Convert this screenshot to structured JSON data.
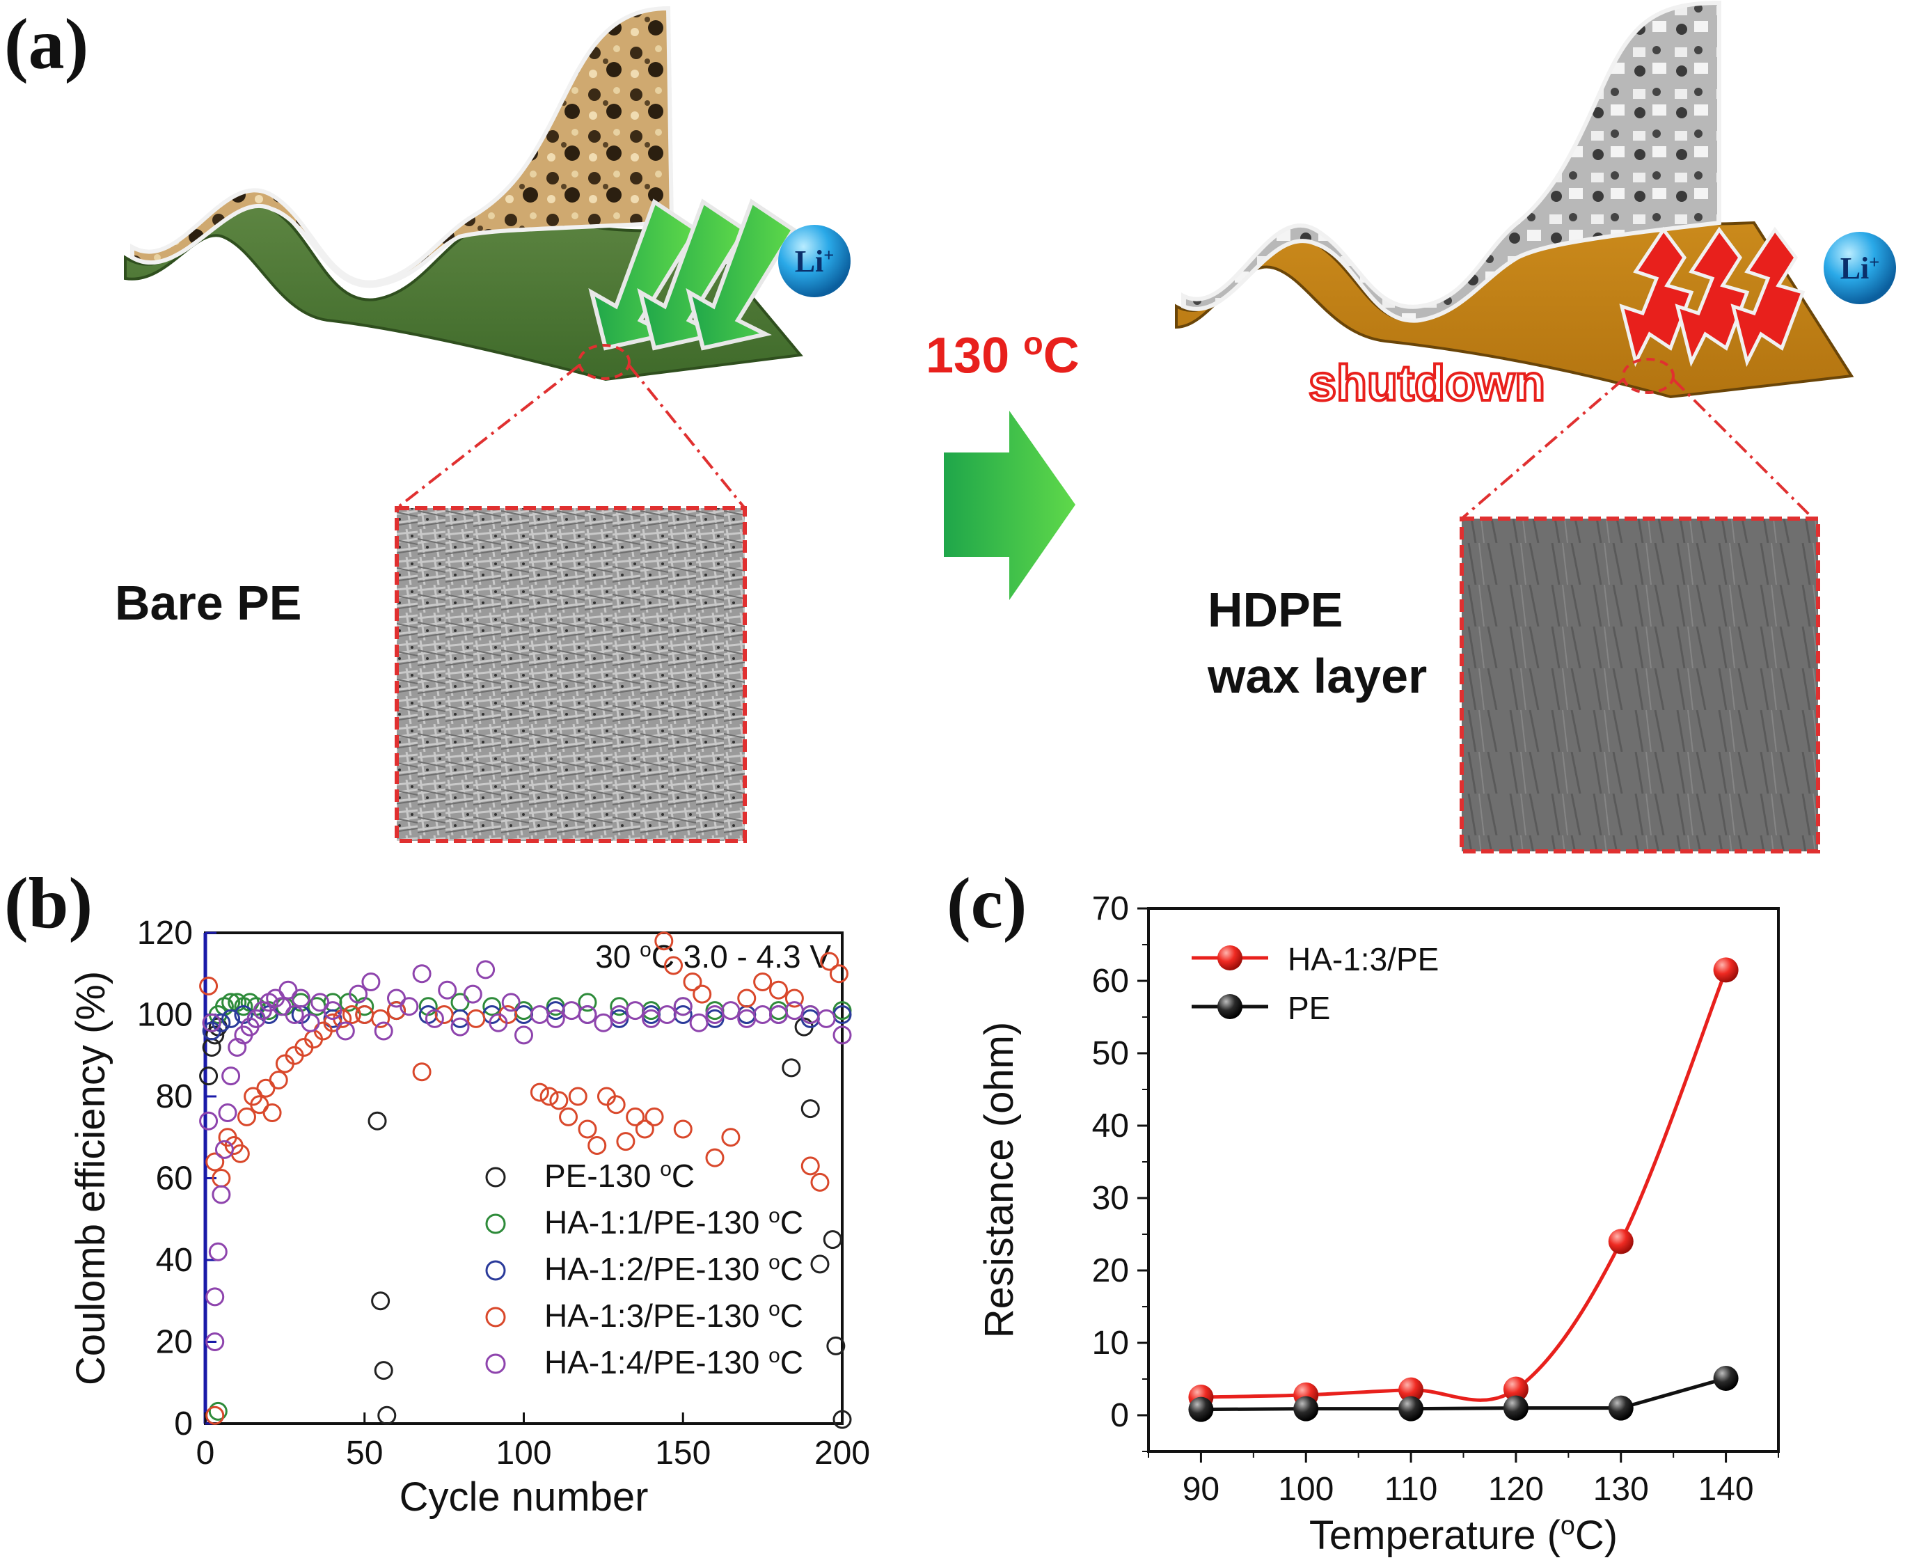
{
  "figure": {
    "panel_a": {
      "label": "(a)",
      "left_caption": "Bare PE",
      "right_caption_line1": "HDPE",
      "right_caption_line2": "wax layer",
      "condition": "130 oC",
      "shutdown_text": "shutdown",
      "ion_label": "Li+"
    },
    "panel_b": {
      "label": "(b)"
    },
    "panel_c": {
      "label": "(c)"
    }
  },
  "chart_data": [
    {
      "id": "b",
      "type": "scatter",
      "title": "",
      "annotation": "30 oC 3.0 - 4.3 V",
      "xlabel": "Cycle number",
      "ylabel": "Coulomb efficiency (%)",
      "xlim": [
        0,
        200
      ],
      "ylim": [
        0,
        120
      ],
      "xticks": [
        0,
        50,
        100,
        150,
        200
      ],
      "yticks": [
        0,
        20,
        40,
        60,
        80,
        100,
        120
      ],
      "legend_position": "center-right",
      "series": [
        {
          "name": "PE-130 oC",
          "color": "#222222",
          "x": [
            1,
            2,
            3,
            4,
            54,
            55,
            56,
            57,
            184,
            188,
            190,
            193,
            197,
            198,
            200
          ],
          "y": [
            85,
            92,
            95,
            97,
            74,
            30,
            13,
            2,
            87,
            97,
            77,
            39,
            45,
            19,
            1
          ]
        },
        {
          "name": "HA-1:1/PE-130 oC",
          "color": "#2e8b3a",
          "x": [
            2,
            4,
            6,
            8,
            10,
            12,
            14,
            16,
            18,
            20,
            25,
            30,
            35,
            40,
            45,
            50,
            60,
            70,
            80,
            90,
            100,
            110,
            120,
            130,
            140,
            150,
            160,
            170,
            180,
            190,
            200,
            4
          ],
          "y": [
            98,
            100,
            102,
            103,
            103,
            102,
            103,
            102,
            101,
            101,
            102,
            103,
            102,
            103,
            103,
            102,
            101,
            102,
            103,
            102,
            101,
            102,
            103,
            102,
            101,
            102,
            101,
            100,
            101,
            100,
            101,
            3
          ]
        },
        {
          "name": "HA-1:2/PE-130 oC",
          "color": "#2a3a9a",
          "x": [
            2,
            5,
            8,
            12,
            16,
            20,
            30,
            40,
            50,
            60,
            70,
            80,
            90,
            100,
            110,
            120,
            130,
            140,
            150,
            160,
            170,
            180,
            190,
            200
          ],
          "y": [
            96,
            98,
            99,
            100,
            99,
            100,
            100,
            99,
            100,
            101,
            100,
            99,
            100,
            100,
            101,
            100,
            99,
            100,
            100,
            99,
            100,
            100,
            99,
            100
          ]
        },
        {
          "name": "HA-1:3/PE-130 oC",
          "color": "#d9482b",
          "x": [
            1,
            3,
            5,
            7,
            9,
            11,
            13,
            15,
            17,
            19,
            21,
            23,
            25,
            28,
            31,
            34,
            37,
            40,
            43,
            46,
            50,
            55,
            60,
            68,
            75,
            85,
            95,
            105,
            108,
            111,
            114,
            117,
            120,
            123,
            126,
            129,
            132,
            135,
            138,
            141,
            144,
            147,
            150,
            153,
            156,
            160,
            165,
            170,
            175,
            180,
            185,
            190,
            193,
            196,
            199,
            3
          ],
          "y": [
            107,
            64,
            60,
            70,
            68,
            66,
            75,
            80,
            78,
            82,
            76,
            84,
            88,
            90,
            92,
            94,
            96,
            98,
            99,
            100,
            100,
            99,
            101,
            86,
            100,
            99,
            100,
            81,
            80,
            79,
            75,
            80,
            72,
            68,
            80,
            78,
            69,
            75,
            72,
            75,
            118,
            112,
            72,
            108,
            105,
            65,
            70,
            104,
            108,
            106,
            104,
            63,
            59,
            113,
            110,
            2
          ]
        },
        {
          "name": "HA-1:4/PE-130 oC",
          "color": "#8e44ad",
          "x": [
            1,
            2,
            3,
            4,
            5,
            6,
            7,
            8,
            10,
            12,
            14,
            16,
            18,
            20,
            22,
            24,
            26,
            28,
            30,
            33,
            36,
            40,
            44,
            48,
            52,
            56,
            60,
            64,
            68,
            72,
            76,
            80,
            84,
            88,
            92,
            96,
            100,
            105,
            110,
            115,
            120,
            125,
            130,
            135,
            140,
            145,
            150,
            155,
            160,
            165,
            170,
            175,
            180,
            185,
            190,
            195,
            200,
            3
          ],
          "y": [
            74,
            98,
            31,
            42,
            56,
            67,
            76,
            85,
            92,
            95,
            97,
            99,
            101,
            103,
            104,
            102,
            106,
            100,
            104,
            98,
            103,
            101,
            96,
            105,
            108,
            96,
            104,
            102,
            110,
            99,
            106,
            97,
            105,
            111,
            98,
            103,
            95,
            100,
            99,
            101,
            100,
            98,
            100,
            101,
            99,
            100,
            102,
            98,
            100,
            101,
            99,
            100,
            100,
            101,
            100,
            99,
            95,
            20
          ]
        }
      ]
    },
    {
      "id": "c",
      "type": "line",
      "title": "",
      "xlabel": "Temperature (oC)",
      "ylabel": "Resistance (ohm)",
      "xlim": [
        85,
        145
      ],
      "ylim": [
        -5,
        70
      ],
      "xticks": [
        90,
        100,
        110,
        120,
        130,
        140
      ],
      "yticks": [
        0,
        10,
        20,
        30,
        40,
        50,
        60,
        70
      ],
      "legend_position": "top-left",
      "x": [
        90,
        100,
        110,
        120,
        130,
        140
      ],
      "series": [
        {
          "name": "HA-1:3/PE",
          "color": "#e8201c",
          "values": [
            2.5,
            2.8,
            3.5,
            3.6,
            24,
            61.5
          ],
          "interpolation": "smooth"
        },
        {
          "name": "PE",
          "color": "#111111",
          "values": [
            0.8,
            0.9,
            0.9,
            1.0,
            1.0,
            5.1
          ],
          "interpolation": "linear"
        }
      ]
    }
  ]
}
